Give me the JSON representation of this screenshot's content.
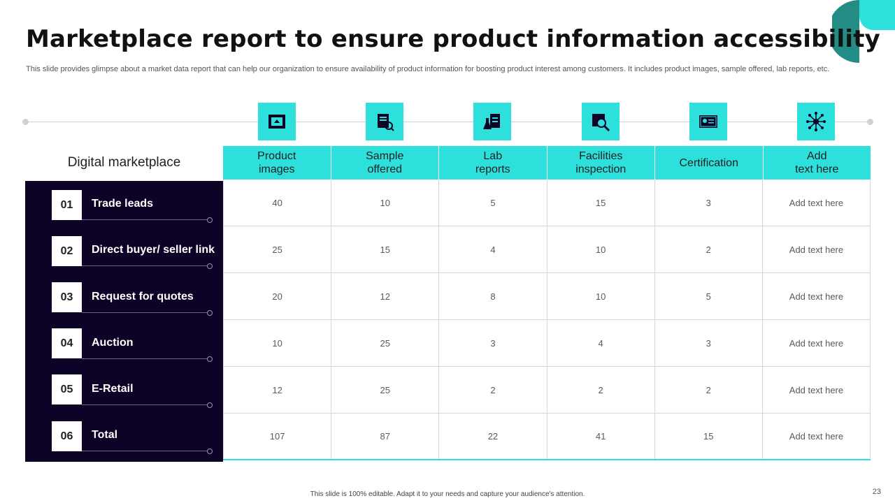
{
  "slide": {
    "title": "Marketplace report to ensure product information accessibility",
    "subtitle": "This slide provides glimpse about a market data report that can help our organization to ensure availability of product information for boosting product interest among customers. It includes product images, sample offered, lab reports, etc.",
    "footer": "This slide is 100% editable. Adapt it to your needs and capture your audience's attention.",
    "page_number": "23"
  },
  "colors": {
    "accent": "#2ee0dc",
    "dark_panel": "#0c0326",
    "logo_dark": "#238c85",
    "logo_light": "#2ee0dc"
  },
  "icons": [
    "photo-frame-icon",
    "sample-box-icon",
    "lab-report-icon",
    "facility-inspection-icon",
    "certificate-icon",
    "network-hub-icon"
  ],
  "table": {
    "row_header_title": "Digital marketplace",
    "columns": [
      "Product\nimages",
      "Sample\noffered",
      "Lab\nreports",
      "Facilities\ninspection",
      "Certification",
      "Add\ntext here"
    ],
    "rows": [
      {
        "num": "01",
        "label": "Trade leads",
        "values": [
          "40",
          "10",
          "5",
          "15",
          "3",
          "Add text here"
        ]
      },
      {
        "num": "02",
        "label": "Direct buyer/ seller link",
        "values": [
          "25",
          "15",
          "4",
          "10",
          "2",
          "Add text here"
        ]
      },
      {
        "num": "03",
        "label": "Request for quotes",
        "values": [
          "20",
          "12",
          "8",
          "10",
          "5",
          "Add text here"
        ]
      },
      {
        "num": "04",
        "label": "Auction",
        "values": [
          "10",
          "25",
          "3",
          "4",
          "3",
          "Add text here"
        ]
      },
      {
        "num": "05",
        "label": "E-Retail",
        "values": [
          "12",
          "25",
          "2",
          "2",
          "2",
          "Add text here"
        ]
      },
      {
        "num": "06",
        "label": "Total",
        "values": [
          "107",
          "87",
          "22",
          "41",
          "15",
          "Add text here"
        ]
      }
    ]
  }
}
